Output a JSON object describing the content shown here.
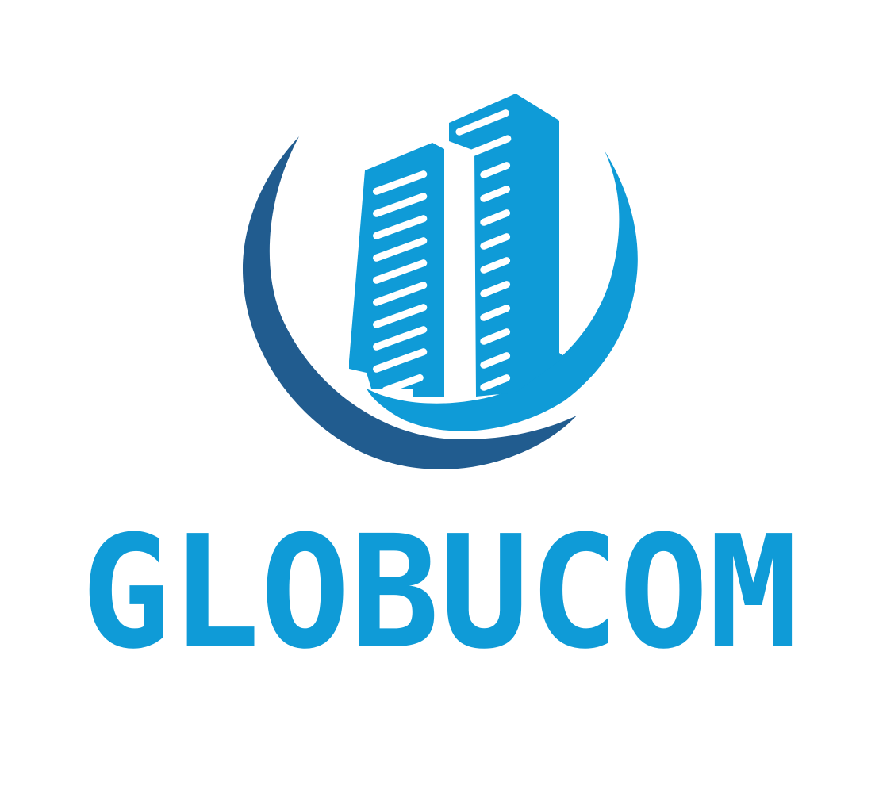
{
  "logo": {
    "brand_name": "GLOBUCOM",
    "icon": "skyscraper-globe-icon",
    "colors": {
      "primary_blue": "#0f9bd7",
      "dark_blue": "#215c8f",
      "background": "#ffffff"
    }
  }
}
